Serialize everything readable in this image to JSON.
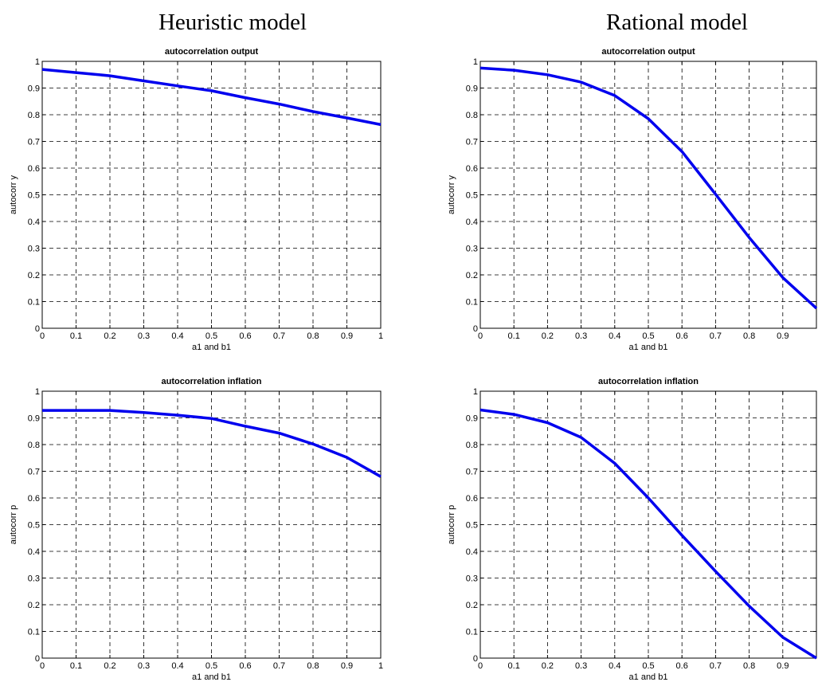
{
  "headers": {
    "left": "Heuristic model",
    "right": "Rational model"
  },
  "colors": {
    "line": "#0000ee",
    "grid": "#000000",
    "frame": "#000000"
  },
  "chart_data": [
    {
      "type": "line",
      "title": "autocorrelation output",
      "xlabel": "a1 and b1",
      "ylabel": "autocorr y",
      "xlim": [
        0,
        1
      ],
      "ylim": [
        0,
        1
      ],
      "xticks": [
        "0",
        "0.1",
        "0.2",
        "0.3",
        "0.4",
        "0.5",
        "0.6",
        "0.7",
        "0.8",
        "0.9",
        "1"
      ],
      "yticks": [
        "0",
        "0.1",
        "0.2",
        "0.3",
        "0.4",
        "0.5",
        "0.6",
        "0.7",
        "0.8",
        "0.9",
        "1"
      ],
      "grid": true,
      "x": [
        0,
        0.1,
        0.2,
        0.3,
        0.4,
        0.5,
        0.6,
        0.7,
        0.8,
        0.9,
        1
      ],
      "y": [
        0.97,
        0.958,
        0.946,
        0.927,
        0.908,
        0.89,
        0.864,
        0.84,
        0.812,
        0.788,
        0.763
      ]
    },
    {
      "type": "line",
      "title": "autocorrelation output",
      "xlabel": "a1 and b1",
      "ylabel": "autocorr y",
      "xlim": [
        0,
        1
      ],
      "ylim": [
        0,
        1
      ],
      "xticks": [
        "0",
        "0.1",
        "0.2",
        "0.3",
        "0.4",
        "0.5",
        "0.6",
        "0.7",
        "0.8",
        "0.9",
        ""
      ],
      "yticks": [
        "0",
        "0.1",
        "0.2",
        "0.3",
        "0.4",
        "0.5",
        "0.6",
        "0.7",
        "0.8",
        "0.9",
        "1"
      ],
      "grid": true,
      "x": [
        0,
        0.1,
        0.2,
        0.3,
        0.4,
        0.5,
        0.6,
        0.7,
        0.8,
        0.9,
        1
      ],
      "y": [
        0.975,
        0.967,
        0.95,
        0.922,
        0.872,
        0.785,
        0.662,
        0.502,
        0.34,
        0.19,
        0.075
      ]
    },
    {
      "type": "line",
      "title": "autocorrelation inflation",
      "xlabel": "a1 and b1",
      "ylabel": "autocorr p",
      "xlim": [
        0,
        1
      ],
      "ylim": [
        0,
        1
      ],
      "xticks": [
        "0",
        "0.1",
        "0.2",
        "0.3",
        "0.4",
        "0.5",
        "0.6",
        "0.7",
        "0.8",
        "0.9",
        "1"
      ],
      "yticks": [
        "0",
        "0.1",
        "0.2",
        "0.3",
        "0.4",
        "0.5",
        "0.6",
        "0.7",
        "0.8",
        "0.9",
        "1"
      ],
      "grid": true,
      "x": [
        0,
        0.1,
        0.2,
        0.3,
        0.4,
        0.5,
        0.6,
        0.7,
        0.8,
        0.9,
        1
      ],
      "y": [
        0.928,
        0.928,
        0.928,
        0.92,
        0.91,
        0.898,
        0.869,
        0.843,
        0.802,
        0.752,
        0.68
      ]
    },
    {
      "type": "line",
      "title": "autocorrelation inflation",
      "xlabel": "a1 and b1",
      "ylabel": "autocorr p",
      "xlim": [
        0,
        1
      ],
      "ylim": [
        0,
        1
      ],
      "xticks": [
        "0",
        "0.1",
        "0.2",
        "0.3",
        "0.4",
        "0.5",
        "0.6",
        "0.7",
        "0.8",
        "0.9",
        ""
      ],
      "yticks": [
        "0",
        "0.1",
        "0.2",
        "0.3",
        "0.4",
        "0.5",
        "0.6",
        "0.7",
        "0.8",
        "0.9",
        "1"
      ],
      "grid": true,
      "x": [
        0,
        0.1,
        0.2,
        0.3,
        0.4,
        0.5,
        0.6,
        0.7,
        0.8,
        0.9,
        1
      ],
      "y": [
        0.93,
        0.913,
        0.882,
        0.827,
        0.73,
        0.6,
        0.46,
        0.325,
        0.195,
        0.078,
        0
      ]
    }
  ]
}
